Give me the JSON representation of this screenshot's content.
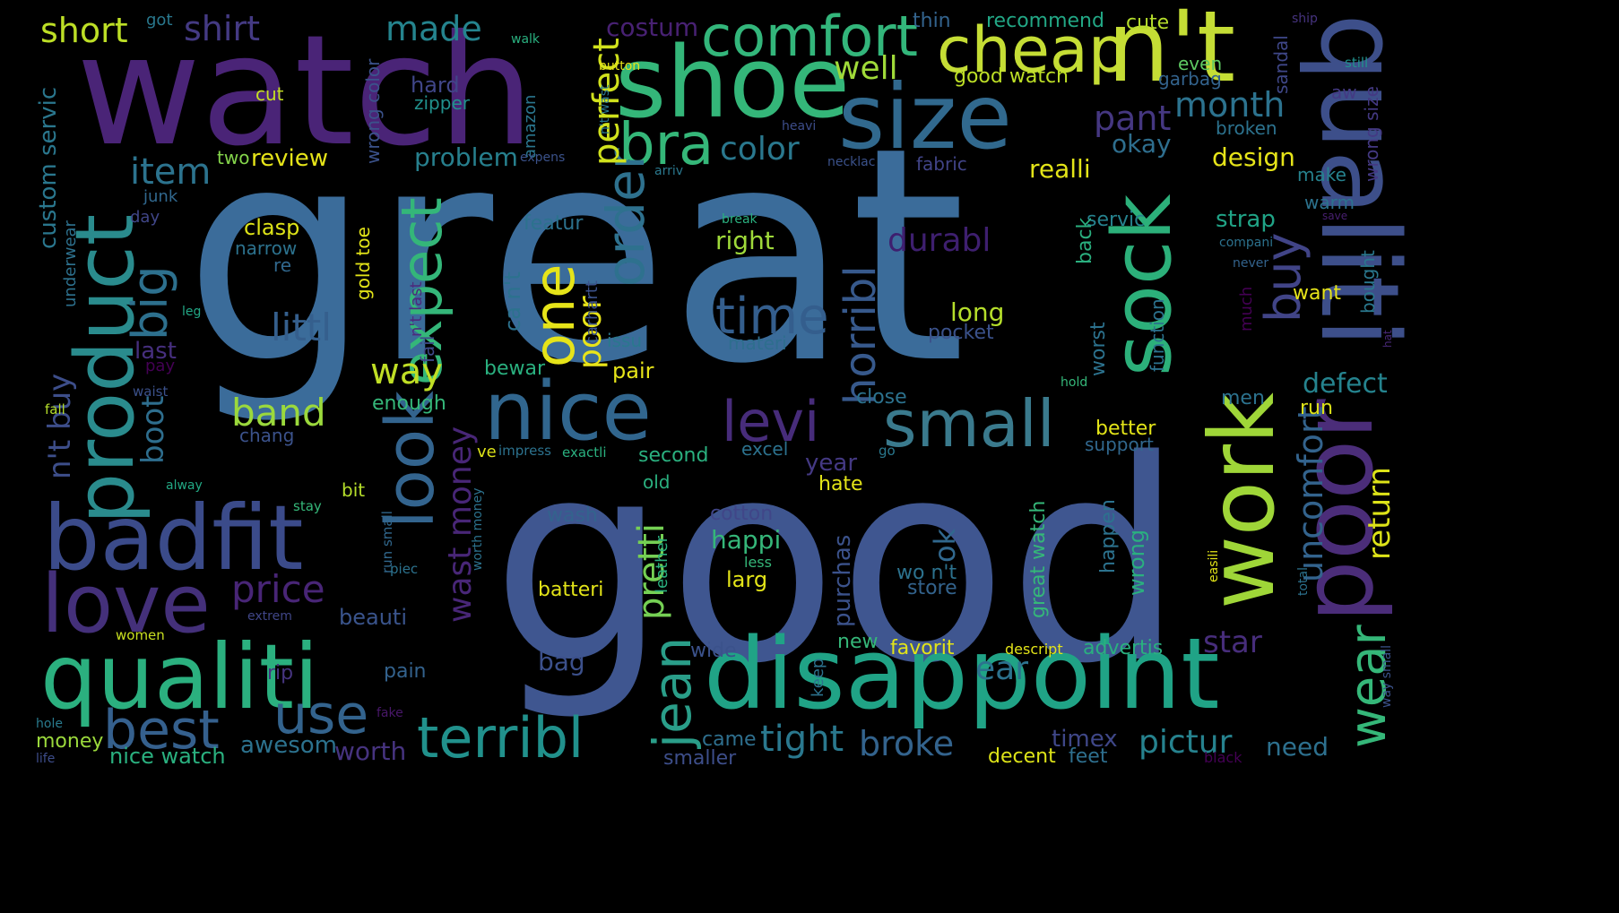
{
  "image_kind": "word cloud",
  "background_color": "#000000",
  "words": [
    {
      "text": "great",
      "color": "#3b6c9a"
    },
    {
      "text": "good",
      "color": "#3f5690"
    },
    {
      "text": "watch",
      "color": "#4a2477"
    },
    {
      "text": "shoe",
      "color": "#34b679"
    },
    {
      "text": "size",
      "color": "#31698e"
    },
    {
      "text": "cheap",
      "color": "#c5dd35"
    },
    {
      "text": "n't",
      "color": "#c5dd35"
    },
    {
      "text": "qualiti",
      "color": "#3d4f8a"
    },
    {
      "text": "poor",
      "color": "#4b2d79"
    },
    {
      "text": "sock",
      "color": "#2cb07a"
    },
    {
      "text": "work",
      "color": "#9fd638"
    },
    {
      "text": "disappoint",
      "color": "#20a386"
    },
    {
      "text": "qualiti",
      "color": "#2bb07f"
    },
    {
      "text": "badfit",
      "color": "#3b4b8a"
    },
    {
      "text": "product",
      "color": "#2a8b8d"
    },
    {
      "text": "love",
      "color": "#44307a"
    },
    {
      "text": "nice",
      "color": "#31668e"
    },
    {
      "text": "comfort",
      "color": "#33b67b"
    },
    {
      "text": "bra",
      "color": "#35b779"
    },
    {
      "text": "small",
      "color": "#3a7a8d"
    },
    {
      "text": "levi",
      "color": "#472c7a"
    },
    {
      "text": "look",
      "color": "#33648e"
    },
    {
      "text": "expect",
      "color": "#34b679"
    },
    {
      "text": "one",
      "color": "#e6e419"
    },
    {
      "text": "order",
      "color": "#2e718e"
    },
    {
      "text": "terribl",
      "color": "#21918c"
    },
    {
      "text": "best",
      "color": "#35608d"
    },
    {
      "text": "use",
      "color": "#33638d"
    },
    {
      "text": "jean",
      "color": "#2a9e89"
    },
    {
      "text": "wear",
      "color": "#35b779"
    },
    {
      "text": "buy",
      "color": "#414487"
    },
    {
      "text": "time",
      "color": "#345e8d"
    },
    {
      "text": "horribl",
      "color": "#37598c"
    },
    {
      "text": "big",
      "color": "#2d708e"
    },
    {
      "text": "item",
      "color": "#2c738e"
    },
    {
      "text": "made",
      "color": "#25848e"
    },
    {
      "text": "shirt",
      "color": "#443a83"
    },
    {
      "text": "short",
      "color": "#bddf26"
    },
    {
      "text": "costum",
      "color": "#482173"
    },
    {
      "text": "perfect",
      "color": "#d0e11c"
    },
    {
      "text": "well",
      "color": "#a0da39"
    },
    {
      "text": "month",
      "color": "#2c728e"
    },
    {
      "text": "pant",
      "color": "#453781"
    },
    {
      "text": "color",
      "color": "#2a788e"
    },
    {
      "text": "review",
      "color": "#e6e419"
    },
    {
      "text": "problem",
      "color": "#27808e"
    },
    {
      "text": "okay",
      "color": "#2e6e8e"
    },
    {
      "text": "realli",
      "color": "#e3e418"
    },
    {
      "text": "design",
      "color": "#e6e419"
    },
    {
      "text": "durabl",
      "color": "#3e1f6f"
    },
    {
      "text": "littl",
      "color": "#355f8d"
    },
    {
      "text": "way",
      "color": "#c0df25"
    },
    {
      "text": "band",
      "color": "#9bd93c"
    },
    {
      "text": "price",
      "color": "#482576"
    },
    {
      "text": "poor",
      "color": "#e8e419"
    },
    {
      "text": "pretti",
      "color": "#75d054"
    },
    {
      "text": "wast money",
      "color": "#482677"
    },
    {
      "text": "uncomfort",
      "color": "#33638d"
    },
    {
      "text": "return",
      "color": "#dde318"
    },
    {
      "text": "defect",
      "color": "#25838e"
    },
    {
      "text": "star",
      "color": "#472d7b"
    },
    {
      "text": "ear",
      "color": "#2c728e"
    },
    {
      "text": "pictur",
      "color": "#26828e"
    },
    {
      "text": "tight",
      "color": "#2a788e"
    },
    {
      "text": "broke",
      "color": "#33638d"
    },
    {
      "text": "need",
      "color": "#2d708e"
    },
    {
      "text": "timex",
      "color": "#3f4788"
    },
    {
      "text": "worth",
      "color": "#46337f"
    },
    {
      "text": "awesom",
      "color": "#2c728e"
    },
    {
      "text": "nice watch",
      "color": "#2ab07f"
    },
    {
      "text": "money",
      "color": "#9bd93c"
    },
    {
      "text": "beauti",
      "color": "#3a548c"
    },
    {
      "text": "boot",
      "color": "#2e6e8e"
    },
    {
      "text": "n't buy",
      "color": "#3d4e8a"
    },
    {
      "text": "custom servic",
      "color": "#2a778e"
    },
    {
      "text": "underwear",
      "color": "#2d718e"
    },
    {
      "text": "last",
      "color": "#462f7e"
    },
    {
      "text": "pay",
      "color": "#440154"
    },
    {
      "text": "leg",
      "color": "#22a785"
    },
    {
      "text": "waist",
      "color": "#3b518b"
    },
    {
      "text": "fall",
      "color": "#b5de2b"
    },
    {
      "text": "alway",
      "color": "#22a884"
    },
    {
      "text": "stay",
      "color": "#35b779"
    },
    {
      "text": "women",
      "color": "#c8e020"
    },
    {
      "text": "extrem",
      "color": "#404688"
    },
    {
      "text": "rip",
      "color": "#463480"
    },
    {
      "text": "pain",
      "color": "#33628d"
    },
    {
      "text": "bag",
      "color": "#3c508b"
    },
    {
      "text": "hole",
      "color": "#297b8e"
    },
    {
      "text": "fake",
      "color": "#481769"
    },
    {
      "text": "life",
      "color": "#3d4d8a"
    },
    {
      "text": "came",
      "color": "#2e6f8e"
    },
    {
      "text": "smaller",
      "color": "#3d4e8a"
    },
    {
      "text": "decent",
      "color": "#dde318"
    },
    {
      "text": "feet",
      "color": "#2e6f8e"
    },
    {
      "text": "black",
      "color": "#440154"
    },
    {
      "text": "got",
      "color": "#29788e"
    },
    {
      "text": "walk",
      "color": "#2ab07f"
    },
    {
      "text": "button",
      "color": "#e6e419"
    },
    {
      "text": "thin",
      "color": "#33638d"
    },
    {
      "text": "recommend",
      "color": "#22a785"
    },
    {
      "text": "cute",
      "color": "#b5de2b"
    },
    {
      "text": "ship",
      "color": "#46337f"
    },
    {
      "text": "still",
      "color": "#21918c"
    },
    {
      "text": "sandal",
      "color": "#3f4788"
    },
    {
      "text": "even",
      "color": "#5ec962"
    },
    {
      "text": "garbag",
      "color": "#33638d"
    },
    {
      "text": "good watch",
      "color": "#bddf26"
    },
    {
      "text": "wrong color",
      "color": "#3b528b"
    },
    {
      "text": "wrong size",
      "color": "#443983"
    },
    {
      "text": "n't wast",
      "color": "#2a788e"
    },
    {
      "text": "amazon",
      "color": "#2a768e"
    },
    {
      "text": "heavi",
      "color": "#3d4d8a"
    },
    {
      "text": "hard",
      "color": "#404688"
    },
    {
      "text": "zipper",
      "color": "#21918c"
    },
    {
      "text": "cut",
      "color": "#c5e021"
    },
    {
      "text": "two",
      "color": "#84d44b"
    },
    {
      "text": "expens",
      "color": "#3b528b"
    },
    {
      "text": "arriv",
      "color": "#2a788e"
    },
    {
      "text": "necklac",
      "color": "#3b528b"
    },
    {
      "text": "fabric",
      "color": "#414487"
    },
    {
      "text": "broken",
      "color": "#2c728e"
    },
    {
      "text": "aw",
      "color": "#443983"
    },
    {
      "text": "make",
      "color": "#26828e"
    },
    {
      "text": "warm",
      "color": "#2c728e"
    },
    {
      "text": "save",
      "color": "#481f70"
    },
    {
      "text": "junk",
      "color": "#31688e"
    },
    {
      "text": "day",
      "color": "#404688"
    },
    {
      "text": "clasp",
      "color": "#dde318"
    },
    {
      "text": "narrow",
      "color": "#2c728e"
    },
    {
      "text": "re",
      "color": "#31688e"
    },
    {
      "text": "gold toe",
      "color": "#e3e418"
    },
    {
      "text": "n't last",
      "color": "#4c2a7c"
    },
    {
      "text": "fail",
      "color": "#3f4a8a"
    },
    {
      "text": "ca n't",
      "color": "#2c728e"
    },
    {
      "text": "featur",
      "color": "#2c728e"
    },
    {
      "text": "break",
      "color": "#2ab07f"
    },
    {
      "text": "right",
      "color": "#9fda3a"
    },
    {
      "text": "servic",
      "color": "#26828e"
    },
    {
      "text": "strap",
      "color": "#20a386"
    },
    {
      "text": "compani",
      "color": "#2c728e"
    },
    {
      "text": "never",
      "color": "#33638d"
    },
    {
      "text": "bought",
      "color": "#2a788e"
    },
    {
      "text": "want",
      "color": "#e6e419"
    },
    {
      "text": "carhartt",
      "color": "#3b528b"
    },
    {
      "text": "issu",
      "color": "#2a788e"
    },
    {
      "text": "materi",
      "color": "#2e6e8e"
    },
    {
      "text": "pocket",
      "color": "#3b528b"
    },
    {
      "text": "worst",
      "color": "#2c728e"
    },
    {
      "text": "much",
      "color": "#440154"
    },
    {
      "text": "function",
      "color": "#2c728e"
    },
    {
      "text": "hat",
      "color": "#482878"
    },
    {
      "text": "back",
      "color": "#2ab07f"
    },
    {
      "text": "long",
      "color": "#b5de2b"
    },
    {
      "text": "bewar",
      "color": "#2ab07f"
    },
    {
      "text": "pair",
      "color": "#e6e419"
    },
    {
      "text": "enough",
      "color": "#35b779"
    },
    {
      "text": "close",
      "color": "#2c728e"
    },
    {
      "text": "hold",
      "color": "#35b779"
    },
    {
      "text": "men",
      "color": "#2c728e"
    },
    {
      "text": "run",
      "color": "#dde318"
    },
    {
      "text": "better",
      "color": "#e3e418"
    },
    {
      "text": "support",
      "color": "#31688e"
    },
    {
      "text": "chang",
      "color": "#3b528b"
    },
    {
      "text": "ve",
      "color": "#dde318"
    },
    {
      "text": "impress",
      "color": "#2c728e"
    },
    {
      "text": "exactli",
      "color": "#2ab07f"
    },
    {
      "text": "go",
      "color": "#2a788e"
    },
    {
      "text": "second",
      "color": "#2ab07f"
    },
    {
      "text": "excel",
      "color": "#2c728e"
    },
    {
      "text": "year",
      "color": "#443983"
    },
    {
      "text": "old",
      "color": "#2ab07f"
    },
    {
      "text": "hate",
      "color": "#e3e418"
    },
    {
      "text": "bit",
      "color": "#b5de2b"
    },
    {
      "text": "wash",
      "color": "#33638d"
    },
    {
      "text": "cotton",
      "color": "#404688"
    },
    {
      "text": "run small",
      "color": "#31688e"
    },
    {
      "text": "worth money",
      "color": "#2c728e"
    },
    {
      "text": "piec",
      "color": "#2c728e"
    },
    {
      "text": "leather",
      "color": "#2ab07f"
    },
    {
      "text": "happi",
      "color": "#35b779"
    },
    {
      "text": "less",
      "color": "#35b779"
    },
    {
      "text": "larg",
      "color": "#e3e418"
    },
    {
      "text": "purchas",
      "color": "#3b528b"
    },
    {
      "text": "ok",
      "color": "#31688e"
    },
    {
      "text": "great watch",
      "color": "#35b779"
    },
    {
      "text": "happen",
      "color": "#2c728e"
    },
    {
      "text": "wrong",
      "color": "#2ab07f"
    },
    {
      "text": "wo n't",
      "color": "#2c728e"
    },
    {
      "text": "store",
      "color": "#33638d"
    },
    {
      "text": "easili",
      "color": "#e3e418"
    },
    {
      "text": "total",
      "color": "#2c728e"
    },
    {
      "text": "batteri",
      "color": "#e3e418"
    },
    {
      "text": "keep",
      "color": "#2c728e"
    },
    {
      "text": "new",
      "color": "#35b779"
    },
    {
      "text": "favorit",
      "color": "#e3e418"
    },
    {
      "text": "descript",
      "color": "#e3e418"
    },
    {
      "text": "advertis",
      "color": "#2ab07f"
    },
    {
      "text": "way small",
      "color": "#3b528b"
    },
    {
      "text": "wide",
      "color": "#3b528b"
    }
  ]
}
